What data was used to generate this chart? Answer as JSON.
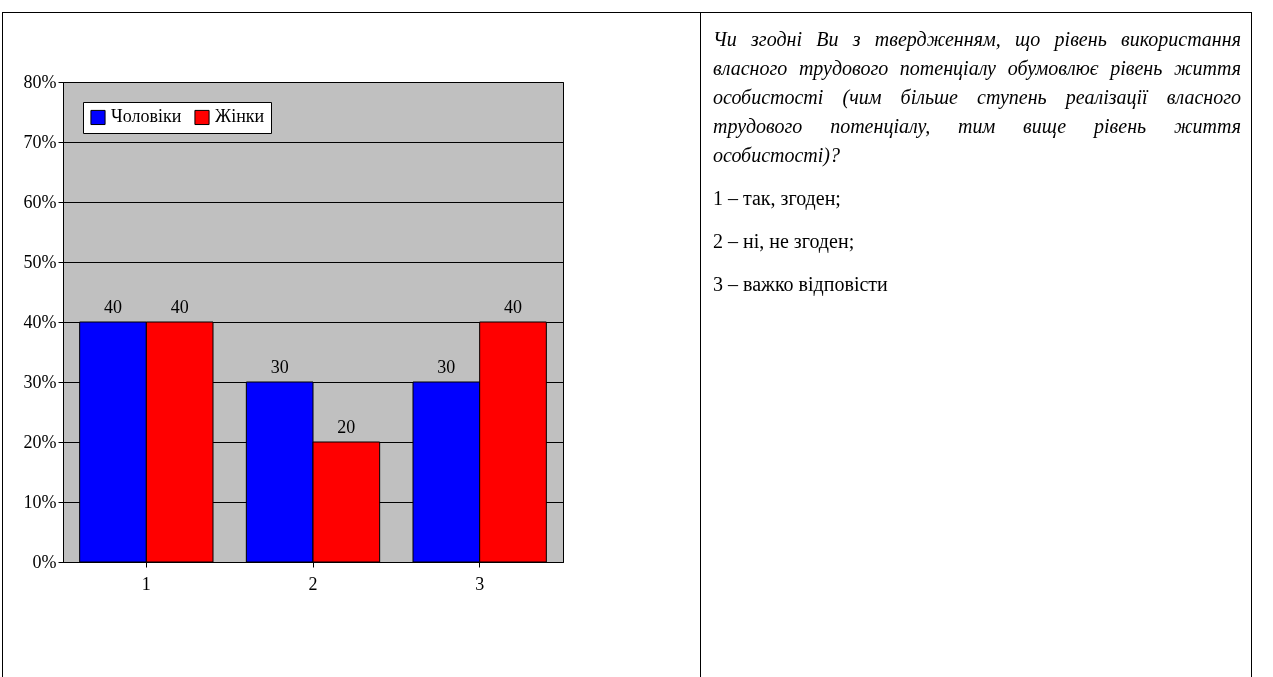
{
  "chart_data": {
    "type": "bar",
    "categories": [
      "1",
      "2",
      "3"
    ],
    "series": [
      {
        "name": "Чоловіки",
        "color": "#0000ff",
        "values": [
          40,
          30,
          30
        ]
      },
      {
        "name": "Жінки",
        "color": "#ff0000",
        "values": [
          40,
          20,
          40
        ]
      }
    ],
    "ylim": [
      0,
      80
    ],
    "yticks": [
      {
        "value": 0,
        "label": "0%"
      },
      {
        "value": 10,
        "label": "10%"
      },
      {
        "value": 20,
        "label": "20%"
      },
      {
        "value": 30,
        "label": "30%"
      },
      {
        "value": 40,
        "label": "40%"
      },
      {
        "value": 50,
        "label": "50%"
      },
      {
        "value": 60,
        "label": "60%"
      },
      {
        "value": 70,
        "label": "70%"
      },
      {
        "value": 80,
        "label": "80%"
      }
    ],
    "grid": "y",
    "legend": "top left",
    "data_labels": true,
    "annotations": [
      "Чи згодні Ви з твердженням, що рівень використання власного трудового потенціалу обумовлює рівень життя особистості (чим більше ступень реалізації власного трудового потенціалу, тим вище рівень життя особистості)?",
      "1 – так, згоден;",
      "2 – ні, не згоден;",
      "3 – важко відповісти"
    ]
  }
}
